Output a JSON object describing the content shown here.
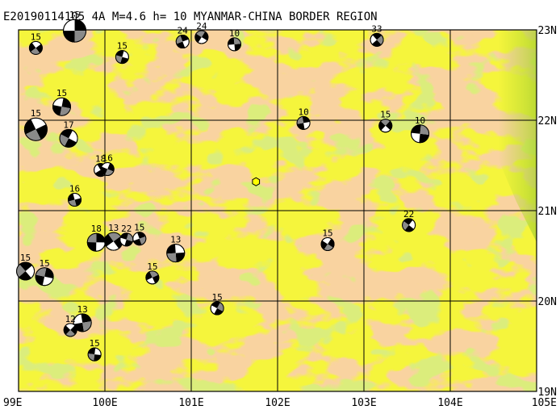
{
  "title": "E20190114105 4A M=4.6 h= 10 MYANMAR-CHINA BORDER REGION",
  "colors": {
    "highland": "#f2a65a",
    "lowland": "#f5f53c",
    "valley": "#b5d832",
    "grid": "#000000",
    "epicenter": "#ffff00"
  },
  "axes": {
    "lon_ticks": [
      "99E",
      "100E",
      "101E",
      "102E",
      "103E",
      "104E",
      "105E"
    ],
    "lat_ticks": [
      "23N",
      "22N",
      "21N",
      "20N",
      "19N"
    ]
  },
  "epicenter": {
    "lon": 101.75,
    "lat": 21.32,
    "symbol": "hexagon"
  },
  "mechanisms": [
    {
      "label": "15",
      "lon": 99.65,
      "lat": 22.99,
      "size": "large"
    },
    {
      "label": "15",
      "lon": 99.2,
      "lat": 22.8,
      "size": "small"
    },
    {
      "label": "15",
      "lon": 100.2,
      "lat": 22.7,
      "size": "small"
    },
    {
      "label": "24",
      "lon": 100.9,
      "lat": 22.87,
      "size": "small"
    },
    {
      "label": "24",
      "lon": 101.12,
      "lat": 22.92,
      "size": "small"
    },
    {
      "label": "10",
      "lon": 101.5,
      "lat": 22.84,
      "size": "small"
    },
    {
      "label": "33",
      "lon": 103.15,
      "lat": 22.89,
      "size": "small"
    },
    {
      "label": "15",
      "lon": 99.5,
      "lat": 22.15,
      "size": "medium"
    },
    {
      "label": "15",
      "lon": 99.2,
      "lat": 21.9,
      "size": "large"
    },
    {
      "label": "17",
      "lon": 99.58,
      "lat": 21.8,
      "size": "medium"
    },
    {
      "label": "10",
      "lon": 102.3,
      "lat": 21.97,
      "size": "small"
    },
    {
      "label": "15",
      "lon": 103.25,
      "lat": 21.94,
      "size": "small"
    },
    {
      "label": "10",
      "lon": 103.65,
      "lat": 21.85,
      "size": "medium"
    },
    {
      "label": "18",
      "lon": 99.95,
      "lat": 21.45,
      "size": "small"
    },
    {
      "label": "16",
      "lon": 100.03,
      "lat": 21.46,
      "size": "small"
    },
    {
      "label": "16",
      "lon": 99.65,
      "lat": 21.12,
      "size": "small"
    },
    {
      "label": "22",
      "lon": 103.52,
      "lat": 20.84,
      "size": "small"
    },
    {
      "label": "18",
      "lon": 99.9,
      "lat": 20.65,
      "size": "medium"
    },
    {
      "label": "13",
      "lon": 100.1,
      "lat": 20.66,
      "size": "medium"
    },
    {
      "label": "22",
      "lon": 100.25,
      "lat": 20.68,
      "size": "small"
    },
    {
      "label": "15",
      "lon": 100.4,
      "lat": 20.69,
      "size": "small"
    },
    {
      "label": "15",
      "lon": 102.58,
      "lat": 20.63,
      "size": "small"
    },
    {
      "label": "13",
      "lon": 100.82,
      "lat": 20.53,
      "size": "medium"
    },
    {
      "label": "15",
      "lon": 99.08,
      "lat": 20.33,
      "size": "medium"
    },
    {
      "label": "15",
      "lon": 99.3,
      "lat": 20.27,
      "size": "medium"
    },
    {
      "label": "15",
      "lon": 100.55,
      "lat": 20.26,
      "size": "small"
    },
    {
      "label": "15",
      "lon": 101.3,
      "lat": 19.92,
      "size": "small"
    },
    {
      "label": "13",
      "lon": 99.74,
      "lat": 19.76,
      "size": "medium"
    },
    {
      "label": "12",
      "lon": 99.6,
      "lat": 19.68,
      "size": "small"
    },
    {
      "label": "15",
      "lon": 99.88,
      "lat": 19.41,
      "size": "small"
    }
  ]
}
